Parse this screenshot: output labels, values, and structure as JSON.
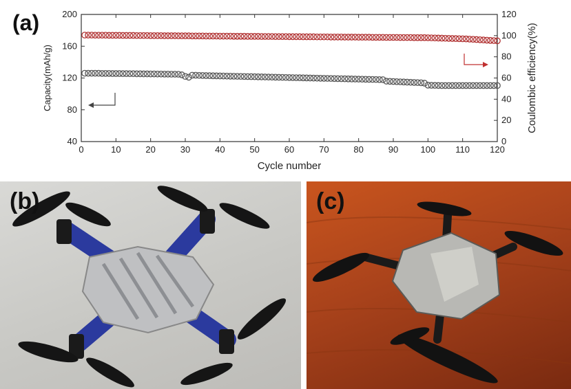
{
  "panels": {
    "a": "(a)",
    "b": "(b)",
    "c": "(c)"
  },
  "chart_data": {
    "type": "scatter",
    "xlabel": "Cycle number",
    "ylabel_left": "Capacity(mAh/g)",
    "ylabel_right": "Coulombic efficiency(%)",
    "xlim": [
      0,
      120
    ],
    "ylim_left": [
      40,
      200
    ],
    "ylim_right": [
      0,
      120
    ],
    "x_ticks": [
      0,
      10,
      20,
      30,
      40,
      50,
      60,
      70,
      80,
      90,
      100,
      110,
      120
    ],
    "y_ticks_left": [
      40,
      80,
      120,
      160,
      200
    ],
    "y_ticks_right": [
      0,
      20,
      40,
      60,
      80,
      100,
      120
    ],
    "grid": false,
    "series": [
      {
        "axis": "right",
        "color": "#b03030",
        "marker": "open-circle",
        "x": [
          1,
          2,
          3,
          4,
          5,
          6,
          7,
          8,
          9,
          10,
          11,
          12,
          13,
          14,
          15,
          16,
          17,
          18,
          19,
          20,
          21,
          22,
          23,
          24,
          25,
          26,
          27,
          28,
          29,
          30,
          31,
          32,
          33,
          34,
          35,
          36,
          37,
          38,
          39,
          40,
          41,
          42,
          43,
          44,
          45,
          46,
          47,
          48,
          49,
          50,
          51,
          52,
          53,
          54,
          55,
          56,
          57,
          58,
          59,
          60,
          61,
          62,
          63,
          64,
          65,
          66,
          67,
          68,
          69,
          70,
          71,
          72,
          73,
          74,
          75,
          76,
          77,
          78,
          79,
          80,
          81,
          82,
          83,
          84,
          85,
          86,
          87,
          88,
          89,
          90,
          91,
          92,
          93,
          94,
          95,
          96,
          97,
          98,
          99,
          100,
          101,
          102,
          103,
          104,
          105,
          106,
          107,
          108,
          109,
          110,
          111,
          112,
          113,
          114,
          115,
          116,
          117,
          118,
          119,
          120
        ],
        "values": [
          100.5,
          100.5,
          100.5,
          100.4,
          100.4,
          100.4,
          100.4,
          100.3,
          100.3,
          100.3,
          100.3,
          100.2,
          100.2,
          100.2,
          100.2,
          100.1,
          100.1,
          100.1,
          100.1,
          100,
          100,
          100,
          100,
          99.9,
          99.9,
          99.9,
          99.9,
          99.8,
          99.8,
          99.8,
          99.8,
          99.7,
          99.7,
          99.7,
          99.7,
          99.6,
          99.6,
          99.6,
          99.6,
          99.5,
          99.5,
          99.5,
          99.5,
          99.4,
          99.4,
          99.4,
          99.4,
          99.3,
          99.3,
          99.3,
          99.3,
          99.2,
          99.2,
          99.2,
          99.2,
          99.1,
          99.1,
          99.1,
          99.1,
          99,
          99,
          99,
          99,
          98.9,
          98.9,
          98.9,
          98.9,
          98.8,
          98.8,
          98.8,
          98.8,
          98.7,
          98.7,
          98.7,
          98.7,
          98.6,
          98.6,
          98.6,
          98.6,
          98.5,
          98.5,
          98.5,
          98.5,
          98.4,
          98.4,
          98.4,
          98.4,
          98.3,
          98.3,
          98.3,
          98.3,
          98.2,
          98.2,
          98.2,
          98.2,
          98.1,
          98.1,
          98.1,
          98.1,
          98,
          97.9,
          97.8,
          97.7,
          97.6,
          97.5,
          97.4,
          97.3,
          97.2,
          97.1,
          97,
          96.9,
          96.7,
          96.5,
          96.3,
          96.1,
          95.9,
          95.7,
          95.5,
          95.3,
          95.1
        ]
      },
      {
        "axis": "left",
        "color": "#555555",
        "marker": "open-circle",
        "x": [
          1,
          2,
          3,
          4,
          5,
          6,
          7,
          8,
          9,
          10,
          11,
          12,
          13,
          14,
          15,
          16,
          17,
          18,
          19,
          20,
          21,
          22,
          23,
          24,
          25,
          26,
          27,
          28,
          29,
          30,
          31,
          32,
          33,
          34,
          35,
          36,
          37,
          38,
          39,
          40,
          41,
          42,
          43,
          44,
          45,
          46,
          47,
          48,
          49,
          50,
          51,
          52,
          53,
          54,
          55,
          56,
          57,
          58,
          59,
          60,
          61,
          62,
          63,
          64,
          65,
          66,
          67,
          68,
          69,
          70,
          71,
          72,
          73,
          74,
          75,
          76,
          77,
          78,
          79,
          80,
          81,
          82,
          83,
          84,
          85,
          86,
          87,
          88,
          89,
          90,
          91,
          92,
          93,
          94,
          95,
          96,
          97,
          98,
          99,
          100,
          101,
          102,
          103,
          104,
          105,
          106,
          107,
          108,
          109,
          110,
          111,
          112,
          113,
          114,
          115,
          116,
          117,
          118,
          119,
          120
        ],
        "values": [
          126,
          126,
          126,
          126,
          126,
          125.8,
          125.8,
          125.8,
          125.6,
          125.6,
          125.6,
          125.5,
          125.5,
          125.4,
          125.4,
          125.3,
          125.3,
          125.2,
          125.2,
          125.1,
          125.1,
          125,
          125,
          124.9,
          124.9,
          124.8,
          124.8,
          124.7,
          124,
          122,
          121,
          123.5,
          123.5,
          123.3,
          123.2,
          123,
          122.9,
          122.8,
          122.7,
          122.6,
          122.5,
          122.4,
          122.3,
          122.2,
          122.1,
          122,
          121.9,
          121.8,
          121.7,
          121.6,
          121.5,
          121.4,
          121.3,
          121.2,
          121.1,
          121,
          120.9,
          120.8,
          120.7,
          120.6,
          120.5,
          120.4,
          120.3,
          120.2,
          120.1,
          120,
          119.9,
          119.8,
          119.7,
          119.6,
          119.5,
          119.4,
          119.3,
          119.2,
          119.1,
          119,
          118.9,
          118.8,
          118.7,
          118.6,
          118.5,
          118.4,
          118.3,
          118.2,
          118.1,
          118,
          117.9,
          116,
          115.8,
          115.6,
          115.4,
          115.2,
          115,
          114.8,
          114.6,
          114.4,
          114.2,
          114,
          113.5,
          111,
          110.8,
          110.7,
          110.6,
          110.5,
          110.5,
          110.5,
          110.5,
          110.5,
          110.5,
          110.5,
          110.5,
          110.5,
          110.5,
          110.5,
          110.5,
          110.5,
          110.5,
          110.5,
          110.5,
          110.5
        ]
      }
    ]
  }
}
